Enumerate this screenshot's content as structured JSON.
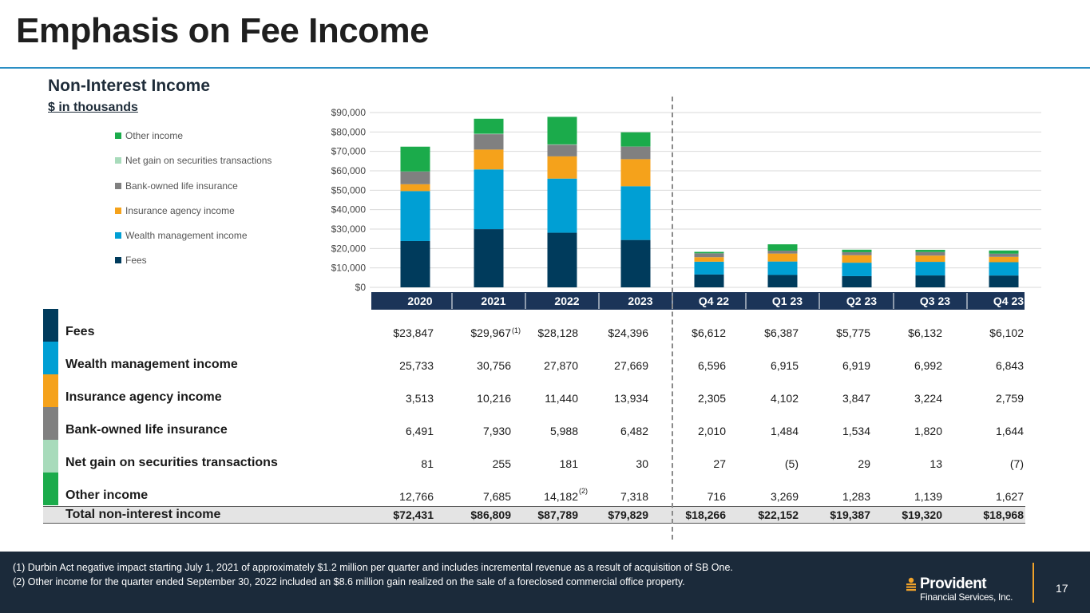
{
  "title": "Emphasis on Fee Income",
  "subtitle": "Non-Interest Income",
  "units": "$ in thousands",
  "colors": {
    "fees": "#003b5c",
    "wealth": "#009fd4",
    "insurance": "#f5a21b",
    "boli": "#808080",
    "securities": "#a8dbbb",
    "other": "#1bab4b",
    "header_band": "#1b3458",
    "footer": "#1b2a3a",
    "title_rule": "#2b8fc4"
  },
  "chart_data": {
    "type": "bar",
    "stacked": true,
    "categories": [
      "2020",
      "2021",
      "2022",
      "2023",
      "Q4  22",
      "Q1 23",
      "Q2 23",
      "Q3 23",
      "Q4 23"
    ],
    "series": [
      {
        "key": "fees",
        "name": "Fees",
        "values": [
          23847,
          29967,
          28128,
          24396,
          6612,
          6387,
          5775,
          6132,
          6102
        ]
      },
      {
        "key": "wealth",
        "name": "Wealth management income",
        "values": [
          25733,
          30756,
          27870,
          27669,
          6596,
          6915,
          6919,
          6992,
          6843
        ]
      },
      {
        "key": "insurance",
        "name": "Insurance agency income",
        "values": [
          3513,
          10216,
          11440,
          13934,
          2305,
          4102,
          3847,
          3224,
          2759
        ]
      },
      {
        "key": "boli",
        "name": "Bank-owned life insurance",
        "values": [
          6491,
          7930,
          5988,
          6482,
          2010,
          1484,
          1534,
          1820,
          1644
        ]
      },
      {
        "key": "securities",
        "name": "Net gain on securities transactions",
        "values": [
          81,
          255,
          181,
          30,
          27,
          -5,
          29,
          13,
          -7
        ]
      },
      {
        "key": "other",
        "name": "Other income",
        "values": [
          12766,
          7685,
          14182,
          7318,
          716,
          3269,
          1283,
          1139,
          1627
        ]
      }
    ],
    "ylim": [
      0,
      90000
    ],
    "yticks": [
      "$0",
      "$10,000",
      "$20,000",
      "$30,000",
      "$40,000",
      "$50,000",
      "$60,000",
      "$70,000",
      "$80,000",
      "$90,000"
    ],
    "grid": true,
    "legend": "left",
    "legend_order": [
      "other",
      "securities",
      "boli",
      "insurance",
      "wealth",
      "fees"
    ]
  },
  "table": {
    "rows": [
      {
        "label": "Fees",
        "color_key": "fees",
        "cells": [
          "$23,847",
          "$29,967",
          "$28,128",
          "$24,396",
          "$6,612",
          "$6,387",
          "$5,775",
          "$6,132",
          "$6,102"
        ]
      },
      {
        "label": "Wealth management income",
        "color_key": "wealth",
        "cells": [
          "25,733",
          "30,756",
          "27,870",
          "27,669",
          "6,596",
          "6,915",
          "6,919",
          "6,992",
          "6,843"
        ]
      },
      {
        "label": "Insurance agency income",
        "color_key": "insurance",
        "cells": [
          "3,513",
          "10,216",
          "11,440",
          "13,934",
          "2,305",
          "4,102",
          "3,847",
          "3,224",
          "2,759"
        ]
      },
      {
        "label": "Bank-owned life insurance",
        "color_key": "boli",
        "cells": [
          "6,491",
          "7,930",
          "5,988",
          "6,482",
          "2,010",
          "1,484",
          "1,534",
          "1,820",
          "1,644"
        ]
      },
      {
        "label": "Net gain on securities transactions",
        "color_key": "securities",
        "cells": [
          "81",
          "255",
          "181",
          "30",
          "27",
          "(5)",
          "29",
          "13",
          "(7)"
        ]
      },
      {
        "label": "Other income",
        "color_key": "other",
        "cells": [
          "12,766",
          "7,685",
          "14,182",
          "7,318",
          "716",
          "3,269",
          "1,283",
          "1,139",
          "1,627"
        ]
      }
    ],
    "total": {
      "label": "Total non-interest income",
      "cells": [
        "$72,431",
        "$86,809",
        "$87,789",
        "$79,829",
        "$18,266",
        "$22,152",
        "$19,387",
        "$19,320",
        "$18,968"
      ]
    },
    "notes": {
      "fees_2021": "(1)",
      "other_2022": "(2)"
    }
  },
  "footnotes": [
    "(1)  Durbin Act negative impact starting July 1, 2021 of approximately $1.2 million per quarter and includes incremental revenue as a result of acquisition of SB One.",
    "(2)  Other income for the quarter ended September 30, 2022 included an $8.6 million gain realized on the sale of a foreclosed commercial office property."
  ],
  "logo": {
    "name": "Provident",
    "sub": "Financial Services, Inc."
  },
  "page_number": "17"
}
